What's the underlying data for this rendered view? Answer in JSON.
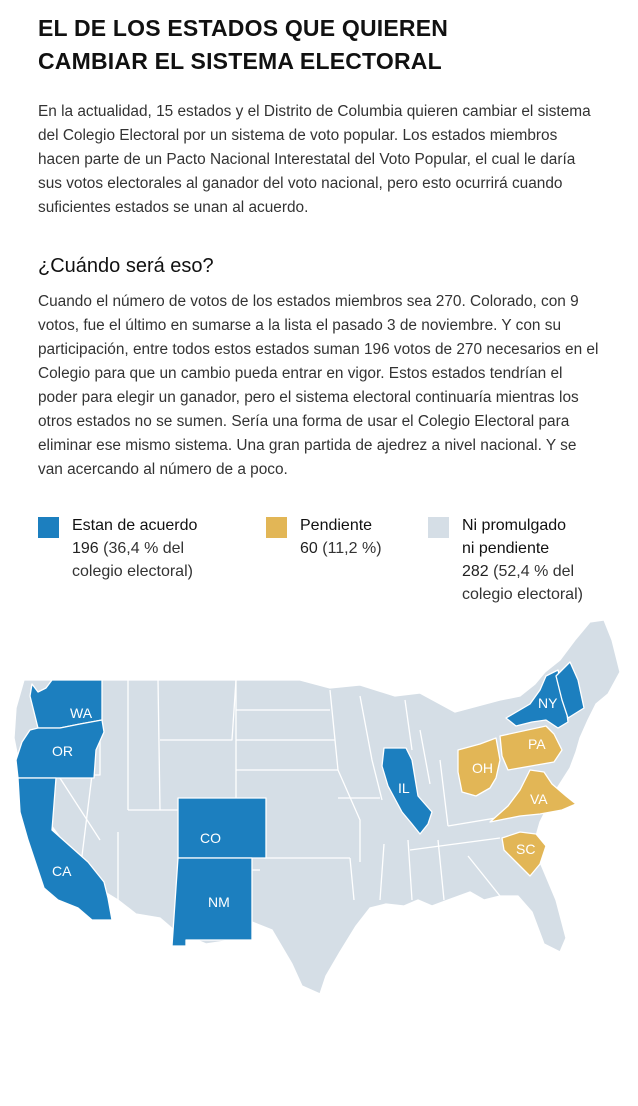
{
  "header": {
    "title_line1": "EL DE LOS ESTADOS QUE QUIEREN",
    "title_line2": "CAMBIAR EL SISTEMA ELECTORAL"
  },
  "intro": "En la actualidad, 15 estados y el Distrito de Columbia quieren cambiar el sistema del Colegio Electoral por un sistema de voto popular. Los estados miembros hacen parte de un Pacto Nacional Interestatal del Voto Popular, el cual le daría sus votos electorales al ganador del voto nacional, pero esto ocurrirá cuando suficientes estados se unan al acuerdo.",
  "subheading": "¿Cuándo será eso?",
  "body": "Cuando el número de votos de los estados miembros sea 270. Colorado, con 9 votos, fue el último en sumarse a la lista el pasado 3 de noviembre. Y con su participación, entre todos estos estados suman 196 votos de 270 necesarios en el Colegio para que un cambio pueda entrar en vigor. Estos estados tendrían el poder para elegir un ganador, pero el sistema electoral continuaría mientras los otros estados no se sumen. Sería una forma de usar el Colegio Electoral para eliminar ese mismo sistema. Una gran partida de ajedrez a nivel nacional. Y se van acercando al número de a poco.",
  "legend": [
    {
      "label_line1": "Estan de acuerdo",
      "label_line2": "",
      "number": "196",
      "detail_line1": " (36,4 % del",
      "detail_line2": "colegio electoral)",
      "color": "#1c7fbf"
    },
    {
      "label_line1": "Pendiente",
      "label_line2": "",
      "number": "60",
      "detail_line1": " (11,2 %)",
      "detail_line2": "",
      "color": "#e2b656"
    },
    {
      "label_line1": "Ni promulgado",
      "label_line2": "ni pendiente",
      "number": "282",
      "detail_line1": " (52,4 % del",
      "detail_line2": "colegio electoral)",
      "color": "#d5dee6"
    }
  ],
  "map": {
    "colors": {
      "agree": "#1c7fbf",
      "pending": "#e2b656",
      "none": "#d5dee6",
      "border": "#ffffff"
    },
    "labels": {
      "WA": "WA",
      "OR": "OR",
      "CA": "CA",
      "CO": "CO",
      "NM": "NM",
      "IL": "IL",
      "NY": "NY",
      "PA": "PA",
      "OH": "OH",
      "VA": "VA",
      "SC": "SC"
    }
  }
}
